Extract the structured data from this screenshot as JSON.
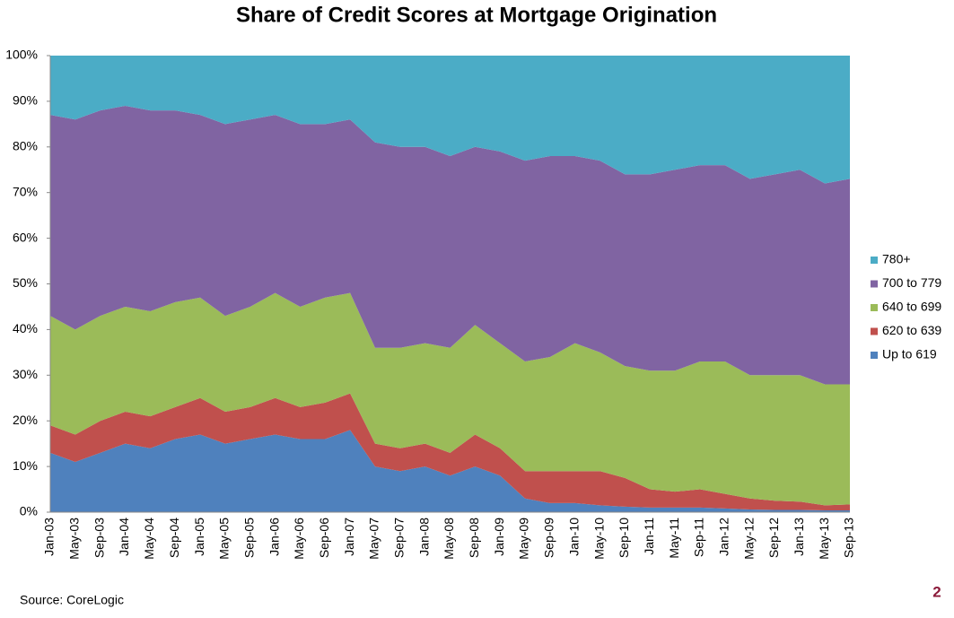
{
  "chart_data": {
    "type": "stacked_area",
    "title": "Share of Credit Scores at Mortgage Origination",
    "categories": [
      "Jan-03",
      "May-03",
      "Sep-03",
      "Jan-04",
      "May-04",
      "Sep-04",
      "Jan-05",
      "May-05",
      "Sep-05",
      "Jan-06",
      "May-06",
      "Sep-06",
      "Jan-07",
      "May-07",
      "Sep-07",
      "Jan-08",
      "May-08",
      "Sep-08",
      "Jan-09",
      "May-09",
      "Sep-09",
      "Jan-10",
      "May-10",
      "Sep-10",
      "Jan-11",
      "May-11",
      "Sep-11",
      "Jan-12",
      "May-12",
      "Sep-12",
      "Jan-13",
      "May-13",
      "Sep-13"
    ],
    "series": [
      {
        "name": "Up to 619",
        "color": "#4f81bd",
        "values": [
          13,
          11,
          13,
          15,
          14,
          16,
          17,
          15,
          16,
          17,
          16,
          16,
          18,
          10,
          9,
          10,
          8,
          10,
          8,
          3,
          2,
          2,
          1.5,
          1.2,
          1,
          1,
          1,
          0.8,
          0.6,
          0.5,
          0.5,
          0.4,
          0.4
        ]
      },
      {
        "name": "620 to 639",
        "color": "#c0504d",
        "values": [
          6,
          6,
          7,
          7,
          7,
          7,
          8,
          7,
          7,
          8,
          7,
          8,
          8,
          5,
          5,
          5,
          5,
          7,
          6,
          6,
          7,
          7,
          7.5,
          6.3,
          4,
          3.5,
          4,
          3.2,
          2.4,
          2,
          1.8,
          1.1,
          1.3
        ]
      },
      {
        "name": "640 to 699",
        "color": "#9bbb59",
        "values": [
          24,
          23,
          23,
          23,
          23,
          23,
          22,
          21,
          22,
          23,
          22,
          23,
          22,
          21,
          22,
          22,
          23,
          24,
          23,
          24,
          25,
          28,
          26,
          24.5,
          26,
          26.5,
          28,
          29,
          27,
          27.5,
          27.7,
          26.5,
          26.3
        ]
      },
      {
        "name": "700 to 779",
        "color": "#8064a2",
        "values": [
          44,
          46,
          45,
          44,
          44,
          42,
          40,
          42,
          41,
          39,
          40,
          38,
          38,
          45,
          44,
          43,
          42,
          39,
          42,
          44,
          44,
          41,
          42,
          42,
          43,
          44,
          43,
          43,
          43,
          44,
          45,
          44,
          45
        ]
      },
      {
        "name": "780+",
        "color": "#4bacc6",
        "values": [
          13,
          14,
          12,
          11,
          12,
          12,
          13,
          15,
          14,
          13,
          15,
          15,
          14,
          19,
          20,
          20,
          22,
          20,
          21,
          23,
          22,
          22,
          23,
          26,
          26,
          25,
          24,
          24,
          27,
          26,
          25,
          28,
          27
        ]
      }
    ],
    "ylim": [
      0,
      100
    ],
    "yticks": [
      {
        "value": 0,
        "label": "0%"
      },
      {
        "value": 10,
        "label": "10%"
      },
      {
        "value": 20,
        "label": "20%"
      },
      {
        "value": 30,
        "label": "30%"
      },
      {
        "value": 40,
        "label": "40%"
      },
      {
        "value": 50,
        "label": "50%"
      },
      {
        "value": 60,
        "label": "60%"
      },
      {
        "value": 70,
        "label": "70%"
      },
      {
        "value": 80,
        "label": "80%"
      },
      {
        "value": 90,
        "label": "90%"
      },
      {
        "value": 100,
        "label": "100%"
      }
    ],
    "legend": "right",
    "source": "Source: CoreLogic",
    "page_number": "2"
  }
}
